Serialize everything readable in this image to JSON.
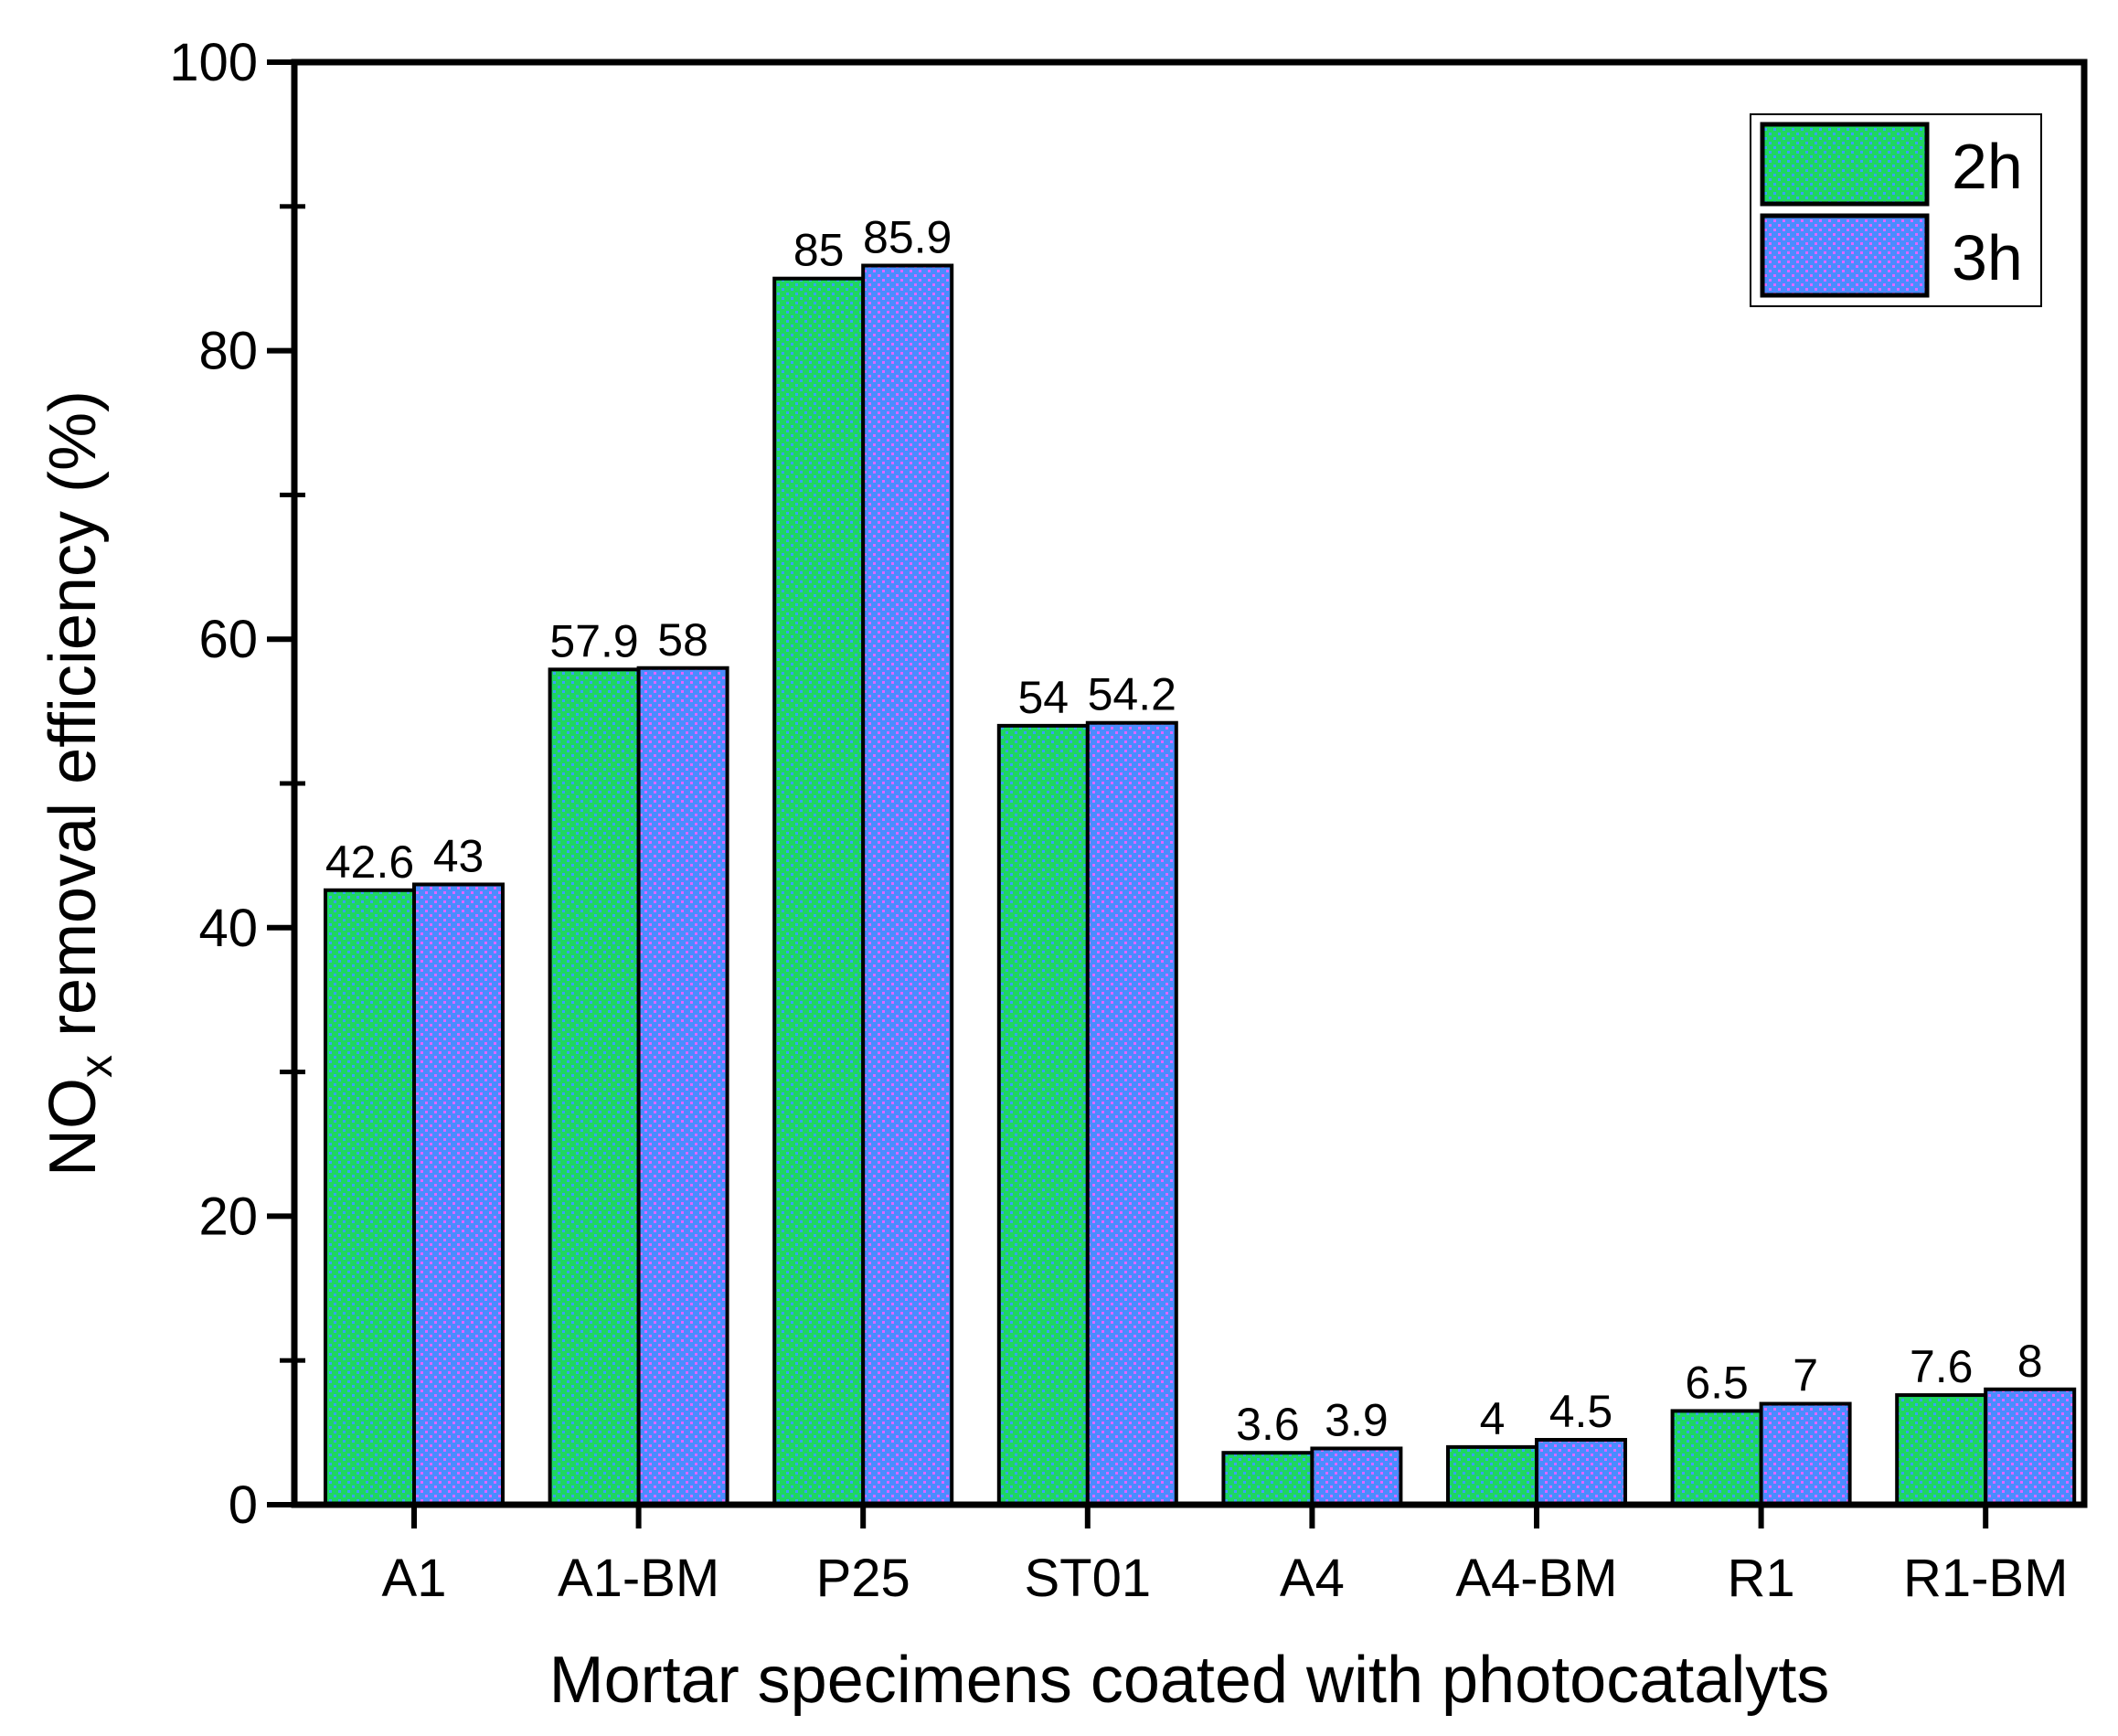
{
  "chart_data": {
    "type": "bar",
    "title": "",
    "xlabel": "Mortar specimens coated with photocatalyts",
    "ylabel": {
      "main": "NO",
      "sub": "x",
      "rest": " removal efficiency (%)"
    },
    "ylim": [
      0,
      100
    ],
    "yticks": [
      "0",
      "20",
      "40",
      "60",
      "80",
      "100"
    ],
    "grid": false,
    "legend_position": "top-right",
    "categories": [
      "A1",
      "A1-BM",
      "P25",
      "ST01",
      "A4",
      "A4-BM",
      "R1",
      "R1-BM"
    ],
    "series": [
      {
        "name": "2h",
        "color": "#1ed760",
        "dot_color": "#3aa0ff",
        "values": [
          42.6,
          57.9,
          85,
          54,
          3.6,
          4,
          6.5,
          7.6
        ],
        "labels": [
          "42.6",
          "57.9",
          "85",
          "54",
          "3.6",
          "4",
          "6.5",
          "7.6"
        ]
      },
      {
        "name": "3h",
        "color": "#4a8cff",
        "dot_color": "#e066ff",
        "values": [
          43,
          58,
          85.9,
          54.2,
          3.9,
          4.5,
          7,
          8
        ],
        "labels": [
          "43",
          "58",
          "85.9",
          "54.2",
          "3.9",
          "4.5",
          "7",
          "8"
        ]
      }
    ]
  }
}
